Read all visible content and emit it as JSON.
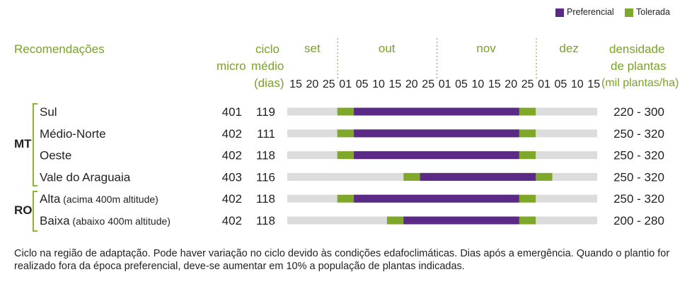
{
  "legend": {
    "preferential": {
      "label": "Preferencial",
      "color": "#5b2a86"
    },
    "tolerated": {
      "label": "Tolerada",
      "color": "#7fa82a"
    }
  },
  "headers": {
    "recommendations": "Recomendações",
    "micro": "micro",
    "cycle_line1": "ciclo",
    "cycle_line2": "médio",
    "cycle_line3": "(dias)",
    "density_line1": "densidade",
    "density_line2": "de plantas",
    "density_line3": "(mil plantas/ha)"
  },
  "chart_data": {
    "type": "bar",
    "subtype": "gantt",
    "months": [
      "set",
      "out",
      "nov",
      "dez"
    ],
    "day_ticks": [
      "15",
      "20",
      "25",
      "01",
      "05",
      "10",
      "15",
      "20",
      "25",
      "01",
      "05",
      "10",
      "15",
      "20",
      "25",
      "01",
      "05",
      "10",
      "15"
    ],
    "groups": [
      {
        "state": "MT",
        "rows": [
          0,
          1,
          2,
          3
        ]
      },
      {
        "state": "RO",
        "rows": [
          4,
          5
        ]
      }
    ],
    "rows": [
      {
        "label": "Sul",
        "note": "",
        "micro": "401",
        "cycle": "119",
        "density": "220 - 300",
        "tolerated_start": "01 out",
        "preferred_start": "05 out",
        "preferred_end": "20 nov",
        "tolerated_end": "25 nov"
      },
      {
        "label": "Médio-Norte",
        "note": "",
        "micro": "402",
        "cycle": "111",
        "density": "250 - 320",
        "tolerated_start": "01 out",
        "preferred_start": "05 out",
        "preferred_end": "20 nov",
        "tolerated_end": "25 nov"
      },
      {
        "label": "Oeste",
        "note": "",
        "micro": "402",
        "cycle": "118",
        "density": "250 - 320",
        "tolerated_start": "01 out",
        "preferred_start": "05 out",
        "preferred_end": "20 nov",
        "tolerated_end": "25 nov"
      },
      {
        "label": "Vale do Araguaia",
        "note": "",
        "micro": "403",
        "cycle": "116",
        "density": "250 - 320",
        "tolerated_start": "20 out",
        "preferred_start": "25 out",
        "preferred_end": "25 nov",
        "tolerated_end": "01 dez"
      },
      {
        "label": "Alta",
        "note": "(acima 400m altitude)",
        "micro": "402",
        "cycle": "118",
        "density": "250 - 320",
        "tolerated_start": "01 out",
        "preferred_start": "05 out",
        "preferred_end": "20 nov",
        "tolerated_end": "25 nov"
      },
      {
        "label": "Baixa",
        "note": "(abaixo 400m altitude)",
        "micro": "402",
        "cycle": "118",
        "density": "200 - 280",
        "tolerated_start": "15 out",
        "preferred_start": "20 out",
        "preferred_end": "20 nov",
        "tolerated_end": "25 nov"
      }
    ]
  },
  "footnote": "Ciclo na região de adaptação. Pode haver variação no ciclo devido às condições edafoclimáticas. Dias após a emergência. Quando o plantio for realizado fora da época preferencial, deve-se aumentar em 10% a população de plantas indicadas."
}
